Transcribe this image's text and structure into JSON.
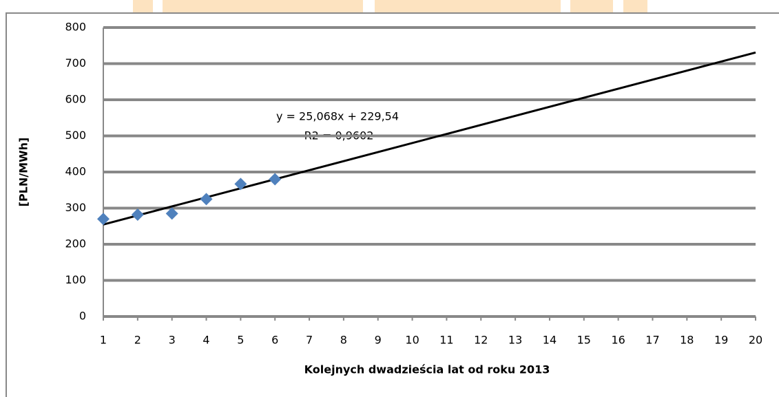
{
  "chart_data": {
    "type": "scatter",
    "y_label": "[PLN/MWh]",
    "x_label": "Kolejnych dwadzieścia lat od roku 2013",
    "series": [
      {
        "color": "#4f81bd",
        "x": [
          1,
          2,
          3,
          4,
          5,
          6
        ],
        "values": [
          270,
          282,
          285,
          325,
          367,
          380
        ]
      }
    ],
    "trendline": {
      "label": "y = 25,068x + 229,54",
      "r2_label": "R2 = 0,9602",
      "slope": 25.068,
      "intercept": 229.54,
      "color": "#000000"
    },
    "xlim": [
      1,
      20
    ],
    "xticks": [
      1,
      2,
      3,
      4,
      5,
      6,
      7,
      8,
      9,
      10,
      11,
      12,
      13,
      14,
      15,
      16,
      17,
      18,
      19,
      20
    ],
    "ylim": [
      0,
      800
    ],
    "yticks": [
      0,
      100,
      200,
      300,
      400,
      500,
      600,
      700,
      800
    ],
    "grid": true
  }
}
